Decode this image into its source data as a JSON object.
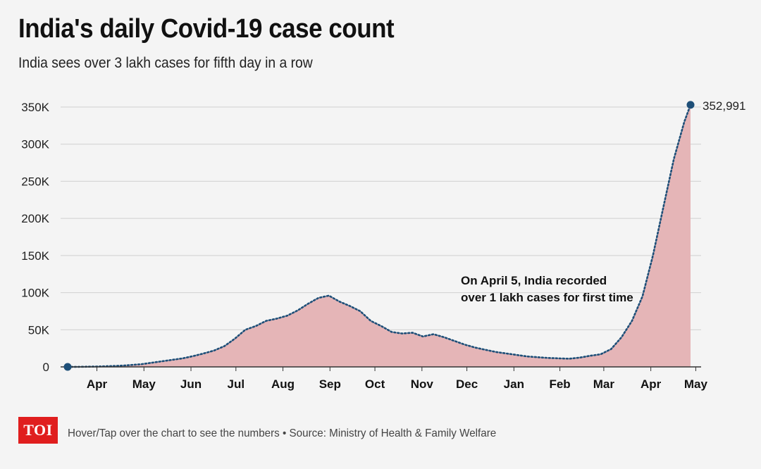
{
  "header": {
    "title": "India's daily Covid-19 case count",
    "subtitle": "India sees over 3 lakh cases for fifth day in a row"
  },
  "footer": {
    "logo_text": "TOI",
    "note": "Hover/Tap over the chart to see the numbers • Source: Ministry of Health & Family Welfare"
  },
  "colors": {
    "area_fill": "#e5b5b7",
    "line": "#1e4f78",
    "grid": "#cfcfcf",
    "axis": "#333333",
    "logo": "#e01e1e"
  },
  "chart_data": {
    "type": "area",
    "title": "India's daily Covid-19 case count",
    "subtitle": "India sees over 3 lakh cases for fifth day in a row",
    "xlabel": "",
    "ylabel": "",
    "ylim": [
      0,
      350000
    ],
    "yticks": [
      0,
      50000,
      100000,
      150000,
      200000,
      250000,
      300000,
      350000
    ],
    "ytick_labels": [
      "0",
      "50K",
      "100K",
      "150K",
      "200K",
      "250K",
      "300K",
      "350K"
    ],
    "xticks": [
      {
        "label": "Apr",
        "week": 2.8
      },
      {
        "label": "May",
        "week": 7.3
      },
      {
        "label": "Jun",
        "week": 11.8
      },
      {
        "label": "Jul",
        "week": 16.1
      },
      {
        "label": "Aug",
        "week": 20.6
      },
      {
        "label": "Sep",
        "week": 25.1
      },
      {
        "label": "Oct",
        "week": 29.4
      },
      {
        "label": "Nov",
        "week": 33.9
      },
      {
        "label": "Dec",
        "week": 38.2
      },
      {
        "label": "Jan",
        "week": 42.7
      },
      {
        "label": "Feb",
        "week": 47.1
      },
      {
        "label": "Mar",
        "week": 51.3
      },
      {
        "label": "Apr",
        "week": 55.8
      },
      {
        "label": "May",
        "week": 60.1
      }
    ],
    "x_unit": "weeks since mid-March 2020",
    "series": [
      {
        "name": "Daily cases",
        "x": [
          0,
          1,
          2,
          3,
          4,
          5,
          6,
          7,
          8,
          9,
          10,
          11,
          12,
          13,
          14,
          15,
          16,
          17,
          18,
          19,
          20,
          21,
          22,
          23,
          24,
          25,
          26,
          27,
          28,
          29,
          30,
          31,
          32,
          33,
          34,
          35,
          36,
          37,
          38,
          39,
          40,
          41,
          42,
          43,
          44,
          45,
          46,
          47,
          48,
          49,
          50,
          51,
          52,
          53,
          54,
          55,
          56,
          57,
          58,
          59,
          59.6
        ],
        "values": [
          0,
          100,
          300,
          600,
          1000,
          1500,
          2500,
          3500,
          5500,
          7500,
          9500,
          11500,
          14500,
          18000,
          22000,
          28000,
          38000,
          50000,
          55000,
          62000,
          65000,
          69000,
          76000,
          85000,
          93000,
          96000,
          88000,
          82000,
          75000,
          62000,
          55000,
          47000,
          45000,
          46000,
          41000,
          44000,
          40000,
          35000,
          30000,
          26000,
          23000,
          20000,
          18000,
          16000,
          14000,
          13000,
          12000,
          11500,
          11000,
          12500,
          15000,
          17000,
          24000,
          40000,
          62000,
          95000,
          150000,
          215000,
          280000,
          330000,
          352991
        ]
      }
    ],
    "peak": {
      "value": 352991,
      "label": "352,991"
    },
    "annotations": [
      {
        "line1": "On April 5, India recorded",
        "line2": "over 1 lakh cases for first time"
      }
    ]
  }
}
